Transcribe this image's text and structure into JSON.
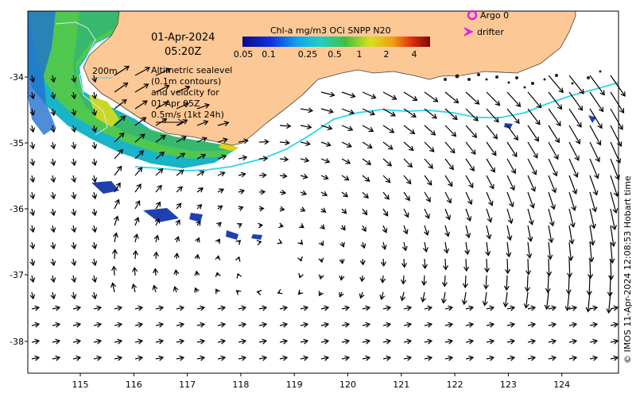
{
  "title": {
    "date": "01-Apr-2024",
    "time": "05:20Z"
  },
  "colorbar": {
    "title": "Chl-a mg/m3 OCi SNPP N20",
    "ticks": [
      "0.05",
      "0.1",
      "0.25",
      "0.5",
      "1",
      "2",
      "4"
    ]
  },
  "legend": {
    "argo": "Argo 0",
    "drifter": "drifter",
    "argo_color": "#e020e0",
    "drifter_color": "#e020e0"
  },
  "contour_label": "200m",
  "annotation_lines": [
    "Altimetric sealevel",
    "(0.1m contours)",
    "and velocity for",
    "01 Apr 05Z",
    "0.5m/s (1kt 24h)"
  ],
  "credit": "© IMOS 11-Apr-2024 12:08:53 Hobart time",
  "axes": {
    "x_ticks": [
      "115",
      "116",
      "117",
      "118",
      "119",
      "120",
      "121",
      "122",
      "123",
      "124"
    ],
    "y_ticks": [
      "-34",
      "-35",
      "-36",
      "-37",
      "-38"
    ]
  },
  "colors": {
    "land": "#fcc896",
    "front": "#28d8e8",
    "contour": "#a0d8f0"
  }
}
